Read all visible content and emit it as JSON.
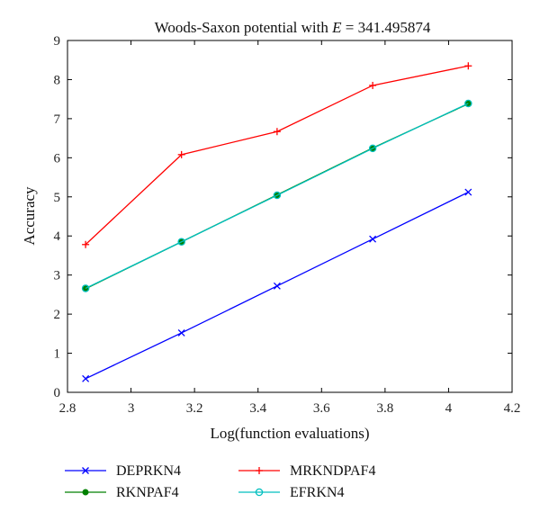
{
  "chart_data": {
    "type": "line",
    "title_prefix": "Woods-Saxon potential with ",
    "title_var": "E",
    "title_suffix": " = 341.495874",
    "xlabel": "Log(function evaluations)",
    "ylabel": "Accuracy",
    "xlim": [
      2.8,
      4.2
    ],
    "ylim": [
      0,
      9
    ],
    "xticks": [
      2.8,
      3,
      3.2,
      3.4,
      3.6,
      3.8,
      4,
      4.2
    ],
    "xtick_labels": [
      "2.8",
      "3",
      "3.2",
      "3.4",
      "3.6",
      "3.8",
      "4",
      "4.2"
    ],
    "yticks": [
      0,
      1,
      2,
      3,
      4,
      5,
      6,
      7,
      8,
      9
    ],
    "ytick_labels": [
      "0",
      "1",
      "2",
      "3",
      "4",
      "5",
      "6",
      "7",
      "8",
      "9"
    ],
    "grid": false,
    "legend_position": "bottom",
    "series": [
      {
        "name": "DEPRKN4",
        "marker": "x",
        "color": "#0000ff",
        "x": [
          2.857,
          3.159,
          3.46,
          3.761,
          4.062
        ],
        "y": [
          0.35,
          1.52,
          2.72,
          3.92,
          5.12
        ]
      },
      {
        "name": "MRKNDPAF4",
        "marker": "plus",
        "color": "#ff0000",
        "x": [
          2.857,
          3.159,
          3.46,
          3.761,
          4.062
        ],
        "y": [
          3.78,
          6.08,
          6.67,
          7.85,
          8.35
        ]
      },
      {
        "name": "RKNPAF4",
        "marker": "dot",
        "color": "#008000",
        "x": [
          2.857,
          3.159,
          3.46,
          3.761,
          4.062
        ],
        "y": [
          2.65,
          3.85,
          5.05,
          6.25,
          7.38
        ]
      },
      {
        "name": "EFRKN4",
        "marker": "circle",
        "color": "#00bfbf",
        "x": [
          2.857,
          3.159,
          3.46,
          3.761,
          4.062
        ],
        "y": [
          2.66,
          3.85,
          5.04,
          6.24,
          7.39
        ]
      }
    ]
  }
}
